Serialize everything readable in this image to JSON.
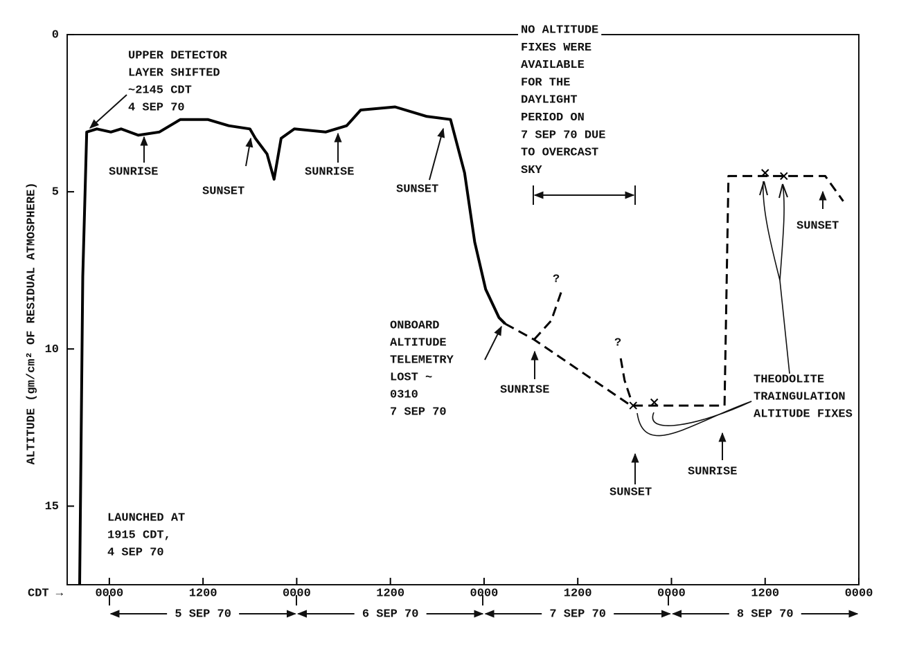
{
  "chart_data": {
    "type": "line",
    "y_label": "ALTITUDE (gm/cm² OF RESIDUAL ATMOSPHERE)",
    "x_label": "CDT →",
    "xlim": [
      -5.4,
      96
    ],
    "ylim": [
      0,
      17.5
    ],
    "y_inverted": true,
    "xticks": [
      {
        "value": 0,
        "label": "0000"
      },
      {
        "value": 12,
        "label": "1200"
      },
      {
        "value": 24,
        "label": "0000"
      },
      {
        "value": 36,
        "label": "1200"
      },
      {
        "value": 48,
        "label": "0000"
      },
      {
        "value": 60,
        "label": "1200"
      },
      {
        "value": 72,
        "label": "0000"
      },
      {
        "value": 84,
        "label": "1200"
      },
      {
        "value": 96,
        "label": "0000"
      }
    ],
    "yticks": [
      0,
      5,
      10,
      15
    ],
    "x_periods": [
      "5 SEP 70",
      "6 SEP 70",
      "7 SEP 70",
      "8 SEP 70"
    ],
    "color": "#000000",
    "series": [
      {
        "style": "solid",
        "x": [
          -3.8,
          -3.4,
          -2.9,
          -1.6,
          0.2,
          1.5,
          3.7,
          6.4,
          9.1,
          12.6,
          15.3,
          18.0,
          18.7,
          20.2,
          21.1,
          22.0,
          23.7,
          27.7,
          30.4,
          32.2,
          36.6,
          40.6,
          43.7,
          45.5,
          46.8,
          48.2,
          49.9,
          50.7
        ],
        "values": [
          17.5,
          7.7,
          3.1,
          3.0,
          3.1,
          3.0,
          3.2,
          3.1,
          2.7,
          2.7,
          2.9,
          3.0,
          3.3,
          3.8,
          4.6,
          3.3,
          3.0,
          3.1,
          2.9,
          2.4,
          2.3,
          2.6,
          2.7,
          4.4,
          6.6,
          8.1,
          9.0,
          9.2
        ]
      },
      {
        "style": "dashed",
        "x": [
          50.7,
          54.4,
          66.8,
          70.0,
          78.8,
          79.3,
          83.7,
          91.7,
          94.0
        ],
        "values": [
          9.2,
          9.7,
          11.8,
          11.8,
          11.8,
          4.5,
          4.5,
          4.5,
          5.3
        ]
      },
      {
        "style": "dashed",
        "x": [
          54.4,
          56.6,
          58.0
        ],
        "values": [
          9.7,
          9.1,
          8.1
        ]
      },
      {
        "style": "dashed",
        "x": [
          65.5,
          66.0,
          66.8
        ],
        "values": [
          10.3,
          11.0,
          11.6
        ]
      },
      {
        "style": "x-marker",
        "x": [
          67.1,
          69.8,
          84.0,
          86.4
        ],
        "values": [
          11.8,
          11.7,
          4.4,
          4.5
        ]
      }
    ],
    "annotations": [
      {
        "lines": [
          "UPPER DETECTOR",
          "LAYER SHIFTED",
          "~2145 CDT",
          "4 SEP 70"
        ]
      },
      {
        "lines": [
          "SUNRISE"
        ]
      },
      {
        "lines": [
          "SUNSET"
        ]
      },
      {
        "lines": [
          "SUNRISE"
        ]
      },
      {
        "lines": [
          "SUNSET"
        ]
      },
      {
        "lines": [
          "NO ALTITUDE",
          "FIXES WERE",
          "AVAILABLE",
          "FOR THE",
          "DAYLIGHT",
          "PERIOD ON",
          "7 SEP 70 DUE",
          "TO OVERCAST",
          "SKY"
        ]
      },
      {
        "lines": [
          "?"
        ]
      },
      {
        "lines": [
          "?"
        ]
      },
      {
        "lines": [
          "ONBOARD",
          "ALTITUDE",
          "TELEMETRY",
          "LOST ~",
          "0310",
          "7 SEP 70"
        ]
      },
      {
        "lines": [
          "SUNRISE"
        ]
      },
      {
        "lines": [
          "SUNSET"
        ]
      },
      {
        "lines": [
          "THEODOLITE",
          "TRAINGULATION",
          "ALTITUDE FIXES"
        ]
      },
      {
        "lines": [
          "SUNSET"
        ]
      },
      {
        "lines": [
          "SUNRISE"
        ]
      },
      {
        "lines": [
          "LAUNCHED AT",
          "1915 CDT,",
          "4 SEP 70"
        ]
      }
    ]
  }
}
